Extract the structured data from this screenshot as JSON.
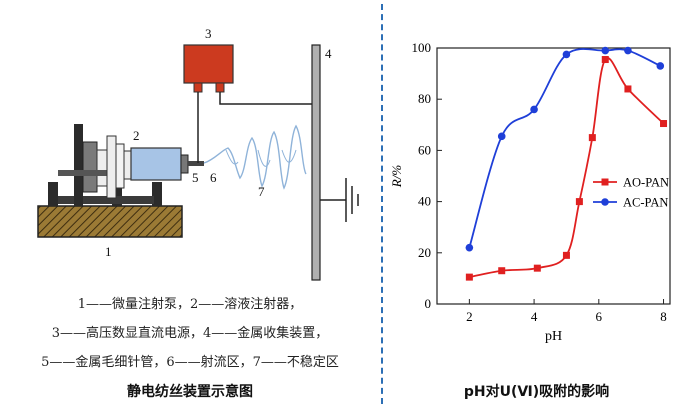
{
  "apparatus": {
    "callouts": [
      "1",
      "2",
      "3",
      "4",
      "5",
      "6",
      "7"
    ],
    "legend_lines": [
      "1——微量注射泵，2——溶液注射器，",
      "3——高压数显直流电源，4——金属收集装置，",
      "5——金属毛细针管，6——射流区，7——不稳定区"
    ],
    "caption": "静电纺丝装置示意图",
    "colors": {
      "power_supply": "#cc3a1f",
      "syringe": "#a7c4e6",
      "base": "#8b6a2b",
      "jet": "#8fb3d9"
    }
  },
  "chart_caption": "pH对U(Ⅵ)吸附的影响",
  "chart_data": {
    "type": "line",
    "xlabel": "pH",
    "ylabel": "R/%",
    "xlim": [
      1,
      8.2
    ],
    "ylim": [
      0,
      100
    ],
    "xticks": [
      2,
      4,
      6,
      8
    ],
    "yticks": [
      0,
      20,
      40,
      60,
      80,
      100
    ],
    "legend_position": "center-right",
    "series": [
      {
        "name": "AO-PAN",
        "color": "#e02020",
        "marker": "square",
        "x": [
          2.0,
          3.0,
          4.1,
          5.0,
          5.4,
          5.8,
          6.2,
          6.9,
          8.0
        ],
        "y": [
          10.5,
          13,
          14,
          19,
          40,
          65,
          95.5,
          84,
          70.5
        ]
      },
      {
        "name": "AC-PAN",
        "color": "#1f3fd8",
        "marker": "circle",
        "x": [
          2.0,
          3.0,
          4.0,
          5.0,
          6.2,
          6.9,
          7.9
        ],
        "y": [
          22,
          65.5,
          76,
          97.5,
          99,
          99,
          93
        ]
      }
    ]
  }
}
